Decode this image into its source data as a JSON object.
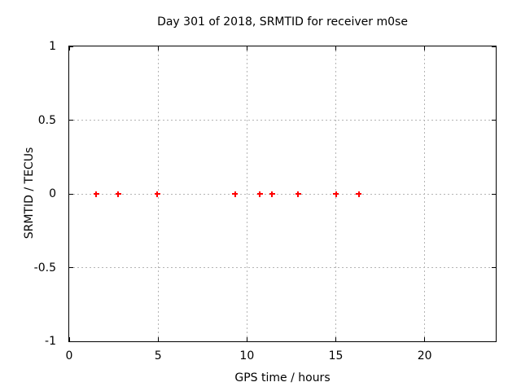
{
  "title": "Day 301 of 2018, SRMTID for receiver m0se",
  "x_axis": {
    "label": "GPS time / hours",
    "tick_labels": [
      "0",
      "5",
      "10",
      "15",
      "20"
    ]
  },
  "y_axis": {
    "label": "SRMTID / TECUs",
    "tick_labels": [
      "1",
      "0.5",
      "0",
      "-0.5",
      "-1"
    ]
  },
  "colors": {
    "background": "#ffffff",
    "frame": "#000000",
    "grid": "#b4b4b4",
    "text": "#000000",
    "marker": "#ff0000"
  },
  "chart_data": {
    "type": "scatter",
    "title": "Day 301 of 2018, SRMTID for receiver m0se",
    "xlabel": "GPS time / hours",
    "ylabel": "SRMTID / TECUs",
    "xlim": [
      0,
      24
    ],
    "ylim": [
      -1,
      1
    ],
    "xticks": [
      0,
      5,
      10,
      15,
      20
    ],
    "yticks": [
      1,
      0.5,
      0,
      -0.5,
      -1
    ],
    "grid": true,
    "legend": "none",
    "marker": "plus",
    "marker_color": "#ff0000",
    "series": [
      {
        "name": "SRMTID",
        "x": [
          1.53,
          2.76,
          4.96,
          9.34,
          10.72,
          11.42,
          12.89,
          15.0,
          16.29
        ],
        "y": [
          0,
          0,
          0,
          0,
          0,
          0,
          0,
          0,
          0
        ]
      }
    ]
  }
}
